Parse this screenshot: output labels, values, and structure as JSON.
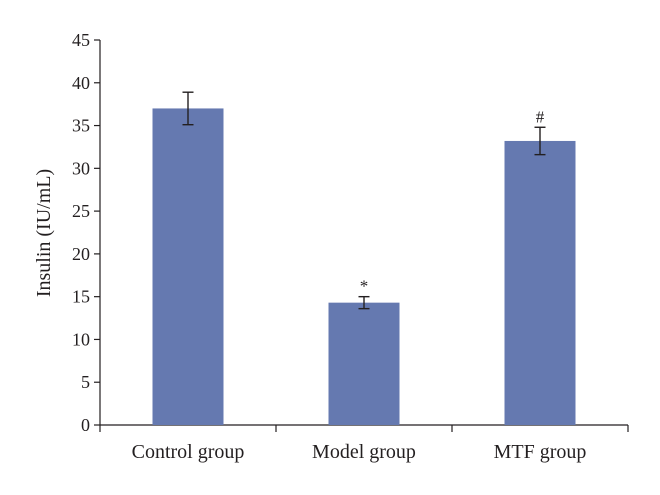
{
  "chart_data": {
    "type": "bar",
    "title": "",
    "xlabel": "",
    "ylabel": "Insulin (IU/mL)",
    "ylim": [
      0,
      45
    ],
    "yticks": [
      0,
      5,
      10,
      15,
      20,
      25,
      30,
      35,
      40,
      45
    ],
    "grid": false,
    "categories": [
      "Control group",
      "Model group",
      "MTF group"
    ],
    "values": [
      37.0,
      14.3,
      33.2
    ],
    "error": [
      1.9,
      0.7,
      1.6
    ],
    "annotations": [
      "",
      "*",
      "#"
    ],
    "colors": {
      "bar": "#6579b0",
      "axis": "#231f20",
      "text": "#231f20"
    }
  }
}
